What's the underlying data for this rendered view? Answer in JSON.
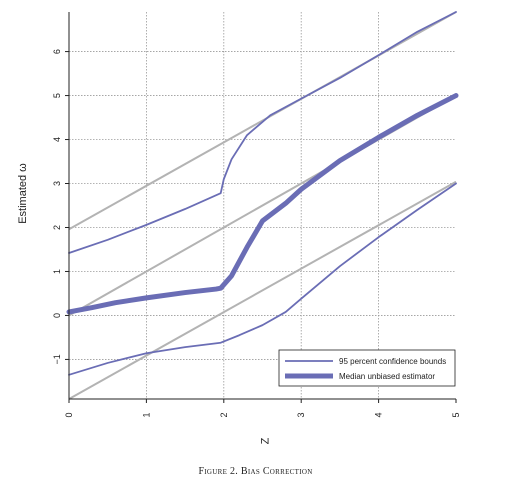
{
  "figure": {
    "caption": "Figure 2. Bias Correction"
  },
  "chart_data": {
    "type": "line",
    "title": "",
    "xlabel": "Z",
    "ylabel": "Estimated ω",
    "xlim": [
      0,
      5
    ],
    "ylim": [
      -1.9,
      6.9
    ],
    "xticks": [
      0,
      1,
      2,
      3,
      4,
      5
    ],
    "yticks": [
      -1,
      0,
      1,
      2,
      3,
      4,
      5,
      6
    ],
    "ytick_labels": [
      "−1",
      "0",
      "1",
      "2",
      "3",
      "4",
      "5",
      "6"
    ],
    "grid": true,
    "legend_position": "bottom-right",
    "colors": {
      "estimator": "#6a6db5",
      "reference": "#b3b3b3",
      "grid": "#9a9a9a"
    },
    "reference_lines": [
      {
        "x": [
          0,
          5
        ],
        "y": [
          -1.96,
          3.04
        ]
      },
      {
        "x": [
          0,
          5
        ],
        "y": [
          0,
          5
        ]
      },
      {
        "x": [
          0,
          5
        ],
        "y": [
          1.96,
          6.96
        ]
      }
    ],
    "series": [
      {
        "name": "95 percent confidence bounds",
        "style": "thin",
        "x": [
          0,
          0.5,
          1,
          1.5,
          1.96,
          2,
          2.1,
          2.3,
          2.6,
          3,
          3.5,
          4,
          4.5,
          5
        ],
        "y": [
          1.42,
          1.72,
          2.06,
          2.42,
          2.78,
          3.1,
          3.55,
          4.1,
          4.55,
          4.93,
          5.4,
          5.92,
          6.45,
          6.96
        ]
      },
      {
        "name": "Median unbiased estimator",
        "style": "thick",
        "x": [
          0,
          0.3,
          0.6,
          1,
          1.5,
          1.9,
          1.96,
          2.1,
          2.3,
          2.5,
          2.8,
          3,
          3.5,
          4,
          4.5,
          5
        ],
        "y": [
          0.08,
          0.18,
          0.29,
          0.4,
          0.52,
          0.6,
          0.62,
          0.9,
          1.55,
          2.15,
          2.55,
          2.87,
          3.52,
          4.05,
          4.55,
          5.0
        ]
      },
      {
        "name": "",
        "style": "thin",
        "x": [
          0,
          0.5,
          1,
          1.5,
          1.96,
          2.2,
          2.5,
          2.8,
          3,
          3.5,
          4,
          4.5,
          5
        ],
        "y": [
          -1.35,
          -1.08,
          -0.86,
          -0.72,
          -0.62,
          -0.45,
          -0.22,
          0.08,
          0.38,
          1.12,
          1.78,
          2.4,
          3.0
        ]
      }
    ]
  }
}
